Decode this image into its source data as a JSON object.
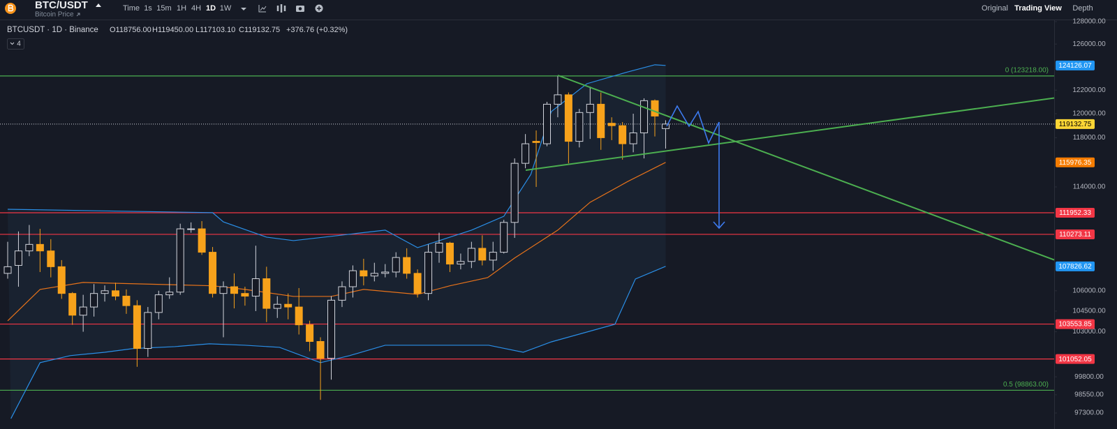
{
  "ui": {
    "symbol": "BTC/USDT",
    "subtitle": "Bitcoin Price",
    "timeframes": [
      "Time",
      "1s",
      "15m",
      "1H",
      "4H",
      "1D",
      "1W"
    ],
    "active_timeframe": "1D",
    "views": [
      "Original",
      "Trading View",
      "Depth"
    ],
    "active_view": "Trading View",
    "legend_title": "BTCUSDT · 1D · Binance",
    "legend_values": [
      "O118756.00",
      "H119450.00",
      "L117103.10",
      "C119132.75",
      "+376.76 (+0.32%)"
    ],
    "indicator_count": "4"
  },
  "chart_data": {
    "type": "candlestick",
    "log_scale": true,
    "ylim": [
      96780,
      128060
    ],
    "yticks": [
      {
        "value": 128000,
        "label": "128000.00"
      },
      {
        "value": 126000,
        "label": "126000.00"
      },
      {
        "value": 122000,
        "label": "122000.00"
      },
      {
        "value": 120000,
        "label": "120000.00"
      },
      {
        "value": 118000,
        "label": "118000.00"
      },
      {
        "value": 114000,
        "label": "114000.00"
      },
      {
        "value": 106000,
        "label": "106000.00"
      },
      {
        "value": 104500,
        "label": "104500.00"
      },
      {
        "value": 103000,
        "label": "103000.00"
      },
      {
        "value": 99800,
        "label": "99800.00"
      },
      {
        "value": 98550,
        "label": "98550.00"
      },
      {
        "value": 97300,
        "label": "97300.00"
      }
    ],
    "up_color": "#d1d4dc",
    "down_color": "#f7a21b",
    "open": [
      107300,
      107900,
      109000,
      109500,
      109000,
      107800,
      105800,
      104200,
      104800,
      105800,
      106000,
      105600,
      104900,
      101800,
      104400,
      105700,
      105900,
      110700,
      110700,
      108900,
      105800,
      106300,
      105800,
      105600,
      106900,
      104700,
      105000,
      104800,
      103500,
      102300,
      101100,
      105300,
      106300,
      107500,
      107100,
      107300,
      107400,
      108500,
      107300,
      105800,
      108900,
      109600,
      108000,
      108200,
      109200,
      108300,
      108900,
      111200,
      115900,
      117700,
      117500,
      120800,
      121600,
      117700,
      120100,
      120800,
      119200,
      119000,
      117500,
      118400,
      121100,
      118756
    ],
    "high": [
      109700,
      110500,
      111000,
      110700,
      109900,
      108300,
      105900,
      105700,
      106500,
      106400,
      106600,
      106100,
      105300,
      104800,
      106000,
      107000,
      111100,
      111200,
      111300,
      109300,
      106700,
      107300,
      106300,
      109400,
      107800,
      105600,
      105800,
      106200,
      103800,
      102600,
      105600,
      106700,
      107900,
      108400,
      108100,
      108000,
      108900,
      109200,
      107600,
      109500,
      110400,
      109700,
      108800,
      109700,
      110200,
      109700,
      111400,
      116300,
      118300,
      118600,
      121000,
      123200,
      121800,
      120400,
      122300,
      121800,
      119700,
      119300,
      120000,
      121300,
      121200,
      119450
    ],
    "low": [
      106900,
      106300,
      108600,
      107400,
      107000,
      105400,
      103500,
      103000,
      104100,
      105200,
      105300,
      104300,
      100500,
      101200,
      103900,
      105400,
      105700,
      110400,
      108700,
      105500,
      102600,
      104700,
      104900,
      104500,
      103700,
      104000,
      103900,
      102800,
      101600,
      98200,
      99600,
      104800,
      105500,
      106400,
      106700,
      107000,
      107000,
      106900,
      105500,
      105300,
      108100,
      107400,
      107600,
      107700,
      107900,
      107500,
      108800,
      110000,
      115500,
      114000,
      117300,
      119700,
      115900,
      117200,
      117900,
      117000,
      117800,
      116200,
      116800,
      116300,
      118100,
      117103.1
    ],
    "close": [
      107800,
      109000,
      109500,
      109000,
      107800,
      105800,
      104200,
      104800,
      105800,
      106000,
      105600,
      104900,
      101800,
      104400,
      105700,
      105900,
      110700,
      110700,
      108900,
      105800,
      106300,
      105800,
      105600,
      106900,
      104700,
      105000,
      104800,
      103500,
      102300,
      101100,
      105300,
      106300,
      107500,
      107100,
      107300,
      107400,
      108500,
      107300,
      105800,
      108900,
      109600,
      108000,
      108200,
      109200,
      108300,
      108900,
      111200,
      115900,
      117500,
      117600,
      120800,
      121600,
      117700,
      120100,
      120800,
      118000,
      119000,
      117500,
      118400,
      121100,
      119800,
      119132.75
    ],
    "bands": [
      {
        "name": "upper",
        "color": "#2a8fe8",
        "x": [
          0,
          19,
          20,
          24,
          26.5,
          35,
          38,
          43,
          46,
          48.5,
          50.4,
          53.7,
          57.5,
          60,
          61
        ],
        "values": [
          112230,
          111960,
          111240,
          110060,
          109790,
          110600,
          109250,
          110600,
          111680,
          115000,
          120180,
          122550,
          123570,
          124186,
          124126.07
        ]
      },
      {
        "name": "middle",
        "color": "#e8731a",
        "x": [
          0,
          3,
          7,
          19,
          22,
          26.5,
          30,
          33,
          38,
          41,
          44.5,
          47,
          51,
          54,
          57.5,
          61
        ],
        "values": [
          103790,
          106100,
          106620,
          106370,
          106100,
          105580,
          105580,
          106100,
          105730,
          106370,
          106980,
          108460,
          110600,
          112780,
          114440,
          115976.35
        ]
      },
      {
        "name": "lower",
        "color": "#2a8fe8",
        "x": [
          0.3,
          3,
          5.8,
          9,
          11.6,
          15.5,
          18.7,
          22,
          25.2,
          29,
          31.7,
          35,
          44.6,
          47.8,
          50.4,
          56.3,
          58.2,
          61
        ],
        "values": [
          96920,
          100790,
          101290,
          101530,
          101790,
          101930,
          102130,
          102030,
          101880,
          100790,
          101290,
          102030,
          102030,
          101530,
          102270,
          103540,
          106880,
          107826.62
        ]
      }
    ],
    "levels": [
      {
        "value": 123218,
        "label": "0 (123218.00)",
        "color": "#4caf50"
      },
      {
        "value": 98863,
        "label": "0.5 (98863.00)",
        "color": "#4caf50"
      },
      {
        "value": 111952.33,
        "color": "#f23645"
      },
      {
        "value": 110273.11,
        "color": "#f23645"
      },
      {
        "value": 103553.85,
        "color": "#f23645"
      },
      {
        "value": 101052.05,
        "color": "#f23645"
      }
    ],
    "current_price": 119132.75,
    "price_tags": [
      {
        "value": 124126.07,
        "color": "#2196f3"
      },
      {
        "value": 119132.75,
        "color": "#fcd535"
      },
      {
        "value": 115976.35,
        "color": "#f57c00"
      },
      {
        "value": 111952.33,
        "color": "#f23645"
      },
      {
        "value": 110273.11,
        "color": "#f23645"
      },
      {
        "value": 107826.62,
        "color": "#2196f3"
      },
      {
        "value": 103553.85,
        "color": "#f23645"
      },
      {
        "value": 101052.05,
        "color": "#f23645"
      }
    ]
  }
}
